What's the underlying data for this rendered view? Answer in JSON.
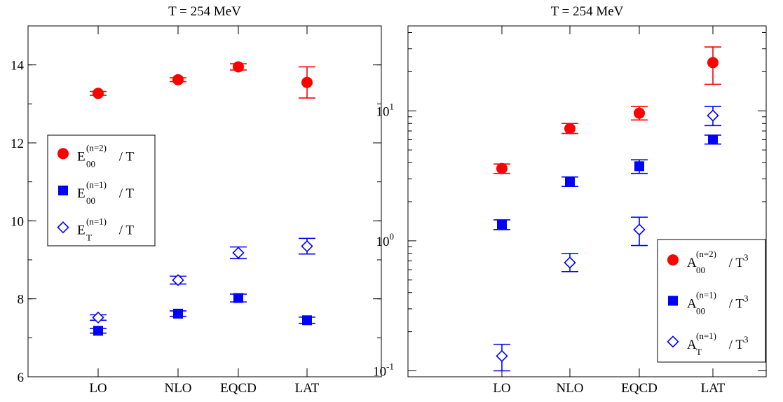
{
  "chart_data": [
    {
      "type": "scatter",
      "title": "T = 254 MeV",
      "xlabel": "",
      "ylabel": "",
      "categories": [
        "LO",
        "NLO",
        "EQCD",
        "LAT"
      ],
      "ylim": [
        6,
        15
      ],
      "yscale": "linear",
      "yticks": [
        "6",
        "8",
        "10",
        "12",
        "14"
      ],
      "grid": false,
      "legend_position": "left-middle",
      "series": [
        {
          "name": "E_00^(n=2) / T",
          "legend": {
            "base": "E",
            "sub": "00",
            "sup": "(n=2)",
            "tail": " / T"
          },
          "marker": "filled-circle",
          "color": "#ff0000",
          "values": [
            13.27,
            13.62,
            13.95,
            13.55
          ],
          "errors": [
            0.05,
            0.05,
            0.08,
            0.4
          ]
        },
        {
          "name": "E_00^(n=1) / T",
          "legend": {
            "base": "E",
            "sub": "00",
            "sup": "(n=1)",
            "tail": " / T"
          },
          "marker": "filled-square",
          "color": "#0000ff",
          "values": [
            7.18,
            7.62,
            8.02,
            7.45
          ],
          "errors": [
            0.06,
            0.07,
            0.1,
            0.08
          ]
        },
        {
          "name": "E_T^(n=1) / T",
          "legend": {
            "base": "E",
            "sub": "T",
            "sup": "(n=1)",
            "tail": " / T"
          },
          "marker": "open-diamond",
          "color": "#0000ff",
          "values": [
            7.52,
            8.48,
            9.18,
            9.35
          ],
          "errors": [
            0.07,
            0.1,
            0.15,
            0.2
          ]
        }
      ]
    },
    {
      "type": "scatter",
      "title": "T = 254 MeV",
      "xlabel": "",
      "ylabel": "",
      "categories": [
        "LO",
        "NLO",
        "EQCD",
        "LAT"
      ],
      "ylim": [
        0.09,
        45
      ],
      "yscale": "log",
      "yticks": [
        {
          "value": 0.1,
          "base": "10",
          "exp": "-1"
        },
        {
          "value": 1,
          "base": "10",
          "exp": "0"
        },
        {
          "value": 10,
          "base": "10",
          "exp": "1"
        }
      ],
      "grid": false,
      "legend_position": "bottom-right",
      "series": [
        {
          "name": "A_00^(n=2) / T^3",
          "legend": {
            "base": "A",
            "sub": "00",
            "sup": "(n=2)",
            "tail": " / T",
            "tailsup": "3"
          },
          "marker": "filled-circle",
          "color": "#ff0000",
          "values": [
            3.6,
            7.3,
            9.6,
            23.5
          ],
          "lower": [
            3.3,
            6.7,
            8.5,
            16.0
          ],
          "upper": [
            3.9,
            8.0,
            10.8,
            31.0
          ]
        },
        {
          "name": "A_00^(n=1) / T^3",
          "legend": {
            "base": "A",
            "sub": "00",
            "sup": "(n=1)",
            "tail": " / T",
            "tailsup": "3"
          },
          "marker": "filled-square",
          "color": "#0000ff",
          "values": [
            1.33,
            2.85,
            3.75,
            6.0
          ],
          "lower": [
            1.22,
            2.62,
            3.3,
            5.55
          ],
          "upper": [
            1.45,
            3.1,
            4.2,
            6.5
          ]
        },
        {
          "name": "A_T^(n=1) / T^3",
          "legend": {
            "base": "A",
            "sub": "T",
            "sup": "(n=1)",
            "tail": " / T",
            "tailsup": "3"
          },
          "marker": "open-diamond",
          "color": "#0000ff",
          "values": [
            0.13,
            0.68,
            1.22,
            9.2
          ],
          "lower": [
            0.1,
            0.58,
            0.92,
            7.7
          ],
          "upper": [
            0.16,
            0.8,
            1.52,
            10.8
          ]
        }
      ]
    }
  ]
}
